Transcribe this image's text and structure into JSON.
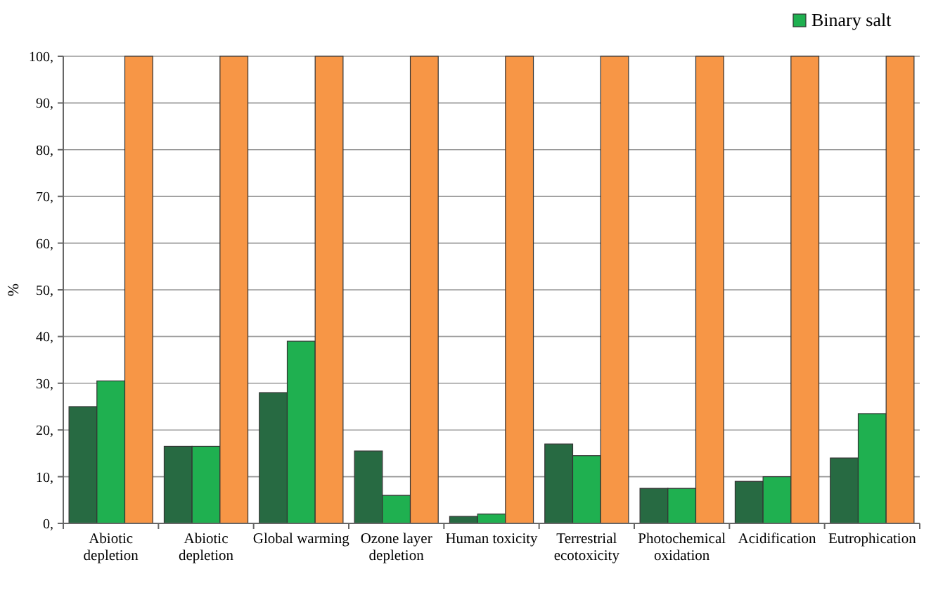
{
  "chart_data": {
    "type": "bar",
    "ylabel": "%",
    "categories": [
      "Abiotic depletion",
      "Abiotic depletion",
      "Global warming",
      "Ozone layer depletion",
      "Human toxicity",
      "Terrestrial ecotoxicity",
      "Photochemical oxidation",
      "Acidification",
      "Eutrophication"
    ],
    "series": [
      {
        "color": "#276a42",
        "values": [
          25,
          16.5,
          28,
          15.5,
          1.5,
          17,
          7.5,
          9,
          14
        ]
      },
      {
        "name": "Binary salt",
        "color": "#1fb050",
        "values": [
          30.5,
          16.5,
          39,
          6,
          2,
          14.5,
          7.5,
          10,
          23.5
        ]
      },
      {
        "color": "#f79646",
        "values": [
          100,
          100,
          100,
          100,
          100,
          100,
          100,
          100,
          100
        ]
      }
    ],
    "ylim": [
      0,
      100
    ],
    "yticks": [
      {
        "value": 0,
        "label": "0,"
      },
      {
        "value": 10,
        "label": "10,"
      },
      {
        "value": 20,
        "label": "20,"
      },
      {
        "value": 30,
        "label": "30,"
      },
      {
        "value": 40,
        "label": "40,"
      },
      {
        "value": 50,
        "label": "50,"
      },
      {
        "value": 60,
        "label": "60,"
      },
      {
        "value": 70,
        "label": "70,"
      },
      {
        "value": 80,
        "label": "80,"
      },
      {
        "value": 90,
        "label": "90,"
      },
      {
        "value": 100,
        "label": "100,"
      }
    ],
    "grid": "y",
    "legend": "top right"
  }
}
